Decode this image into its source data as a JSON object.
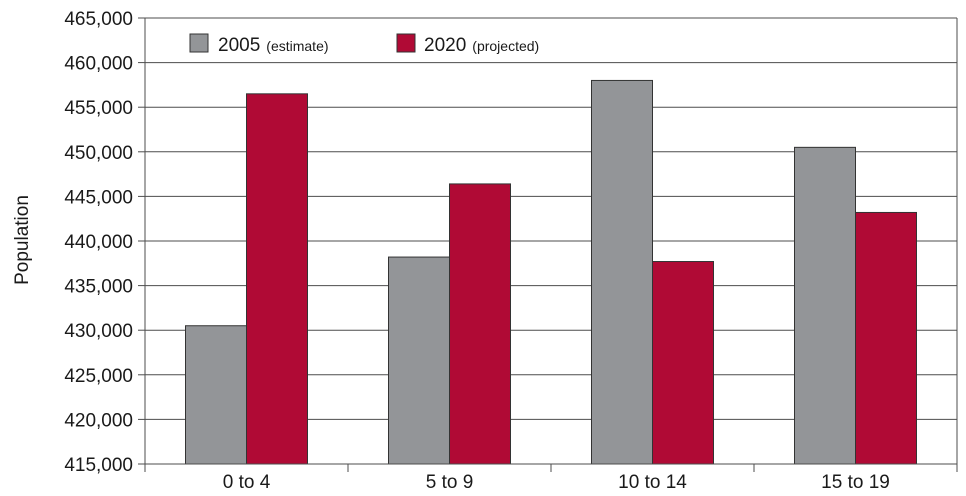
{
  "chart_data": {
    "type": "bar",
    "ylabel": "Population",
    "categories": [
      "0 to 4",
      "5 to 9",
      "10 to 14",
      "15 to 19"
    ],
    "series": [
      {
        "name": "2005",
        "name_note": "(estimate)",
        "color": "#939598",
        "values": [
          430500,
          438200,
          458000,
          450500
        ]
      },
      {
        "name": "2020",
        "name_note": "(projected)",
        "color": "#b00a35",
        "values": [
          456500,
          446400,
          437700,
          443200
        ]
      }
    ],
    "ylim": [
      415000,
      465000
    ],
    "yticks": [
      415000,
      420000,
      425000,
      430000,
      435000,
      440000,
      445000,
      450000,
      455000,
      460000,
      465000
    ],
    "ytick_labels": [
      "415,000",
      "420,000",
      "425,000",
      "430,000",
      "435,000",
      "440,000",
      "445,000",
      "450,000",
      "455,000",
      "460,000",
      "465,000"
    ],
    "grid": "horizontal",
    "legend_position": "top-left"
  }
}
